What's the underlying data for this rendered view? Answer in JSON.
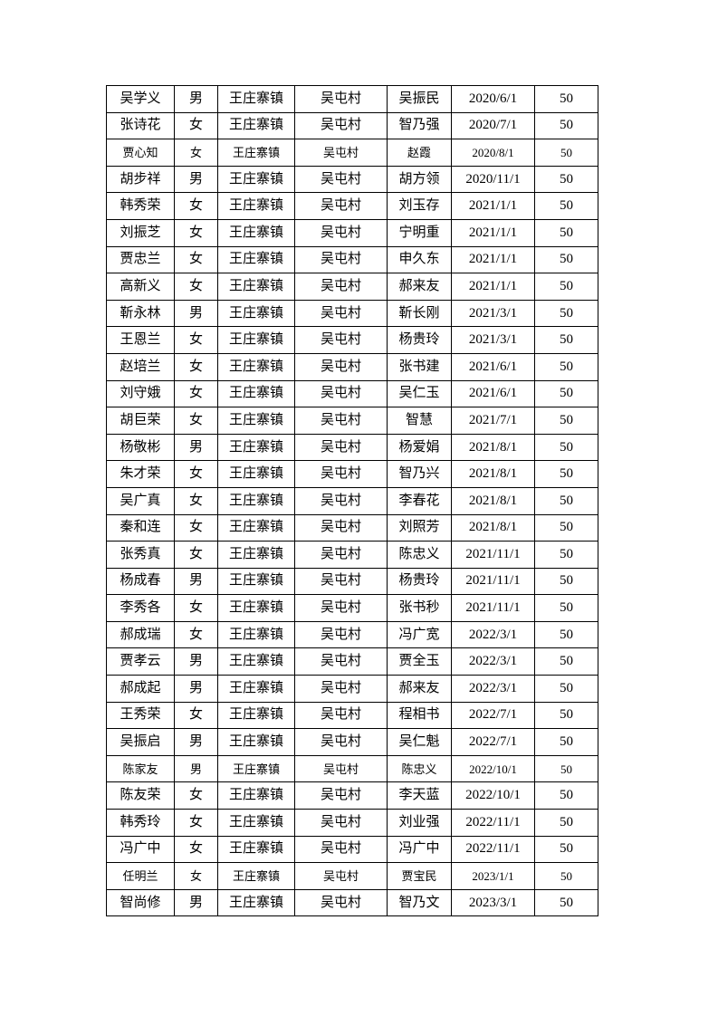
{
  "page": {
    "background_color": "#ffffff",
    "text_color": "#000000",
    "border_color": "#000000"
  },
  "table": {
    "rows": [
      [
        "吴学义",
        "男",
        "王庄寨镇",
        "吴屯村",
        "吴振民",
        "2020/6/1",
        "50"
      ],
      [
        "张诗花",
        "女",
        "王庄寨镇",
        "吴屯村",
        "智乃强",
        "2020/7/1",
        "50"
      ],
      [
        "贾心知",
        "女",
        "王庄寨镇",
        "吴屯村",
        "赵霞",
        "2020/8/1",
        "50"
      ],
      [
        "胡步祥",
        "男",
        "王庄寨镇",
        "吴屯村",
        "胡方领",
        "2020/11/1",
        "50"
      ],
      [
        "韩秀荣",
        "女",
        "王庄寨镇",
        "吴屯村",
        "刘玉存",
        "2021/1/1",
        "50"
      ],
      [
        "刘振芝",
        "女",
        "王庄寨镇",
        "吴屯村",
        "宁明重",
        "2021/1/1",
        "50"
      ],
      [
        "贾忠兰",
        "女",
        "王庄寨镇",
        "吴屯村",
        "申久东",
        "2021/1/1",
        "50"
      ],
      [
        "高新义",
        "女",
        "王庄寨镇",
        "吴屯村",
        "郝来友",
        "2021/1/1",
        "50"
      ],
      [
        "靳永林",
        "男",
        "王庄寨镇",
        "吴屯村",
        "靳长刚",
        "2021/3/1",
        "50"
      ],
      [
        "王恩兰",
        "女",
        "王庄寨镇",
        "吴屯村",
        "杨贵玲",
        "2021/3/1",
        "50"
      ],
      [
        "赵培兰",
        "女",
        "王庄寨镇",
        "吴屯村",
        "张书建",
        "2021/6/1",
        "50"
      ],
      [
        "刘守娥",
        "女",
        "王庄寨镇",
        "吴屯村",
        "吴仁玉",
        "2021/6/1",
        "50"
      ],
      [
        "胡巨荣",
        "女",
        "王庄寨镇",
        "吴屯村",
        "智慧",
        "2021/7/1",
        "50"
      ],
      [
        "杨敬彬",
        "男",
        "王庄寨镇",
        "吴屯村",
        "杨爱娟",
        "2021/8/1",
        "50"
      ],
      [
        "朱才荣",
        "女",
        "王庄寨镇",
        "吴屯村",
        "智乃兴",
        "2021/8/1",
        "50"
      ],
      [
        "吴广真",
        "女",
        "王庄寨镇",
        "吴屯村",
        "李春花",
        "2021/8/1",
        "50"
      ],
      [
        "秦和连",
        "女",
        "王庄寨镇",
        "吴屯村",
        "刘照芳",
        "2021/8/1",
        "50"
      ],
      [
        "张秀真",
        "女",
        "王庄寨镇",
        "吴屯村",
        "陈忠义",
        "2021/11/1",
        "50"
      ],
      [
        "杨成春",
        "男",
        "王庄寨镇",
        "吴屯村",
        "杨贵玲",
        "2021/11/1",
        "50"
      ],
      [
        "李秀各",
        "女",
        "王庄寨镇",
        "吴屯村",
        "张书秒",
        "2021/11/1",
        "50"
      ],
      [
        "郝成瑞",
        "女",
        "王庄寨镇",
        "吴屯村",
        "冯广宽",
        "2022/3/1",
        "50"
      ],
      [
        "贾孝云",
        "男",
        "王庄寨镇",
        "吴屯村",
        "贾全玉",
        "2022/3/1",
        "50"
      ],
      [
        "郝成起",
        "男",
        "王庄寨镇",
        "吴屯村",
        "郝来友",
        "2022/3/1",
        "50"
      ],
      [
        "王秀荣",
        "女",
        "王庄寨镇",
        "吴屯村",
        "程相书",
        "2022/7/1",
        "50"
      ],
      [
        "吴振启",
        "男",
        "王庄寨镇",
        "吴屯村",
        "吴仁魁",
        "2022/7/1",
        "50"
      ],
      [
        "陈家友",
        "男",
        "王庄寨镇",
        "吴屯村",
        "陈忠义",
        "2022/10/1",
        "50"
      ],
      [
        "陈友荣",
        "女",
        "王庄寨镇",
        "吴屯村",
        "李天蓝",
        "2022/10/1",
        "50"
      ],
      [
        "韩秀玲",
        "女",
        "王庄寨镇",
        "吴屯村",
        "刘业强",
        "2022/11/1",
        "50"
      ],
      [
        "冯广中",
        "女",
        "王庄寨镇",
        "吴屯村",
        "冯广中",
        "2022/11/1",
        "50"
      ],
      [
        "任明兰",
        "女",
        "王庄寨镇",
        "吴屯村",
        "贾宝民",
        "2023/1/1",
        "50"
      ],
      [
        "智尚修",
        "男",
        "王庄寨镇",
        "吴屯村",
        "智乃文",
        "2023/3/1",
        "50"
      ]
    ],
    "small_font_rows": [
      2,
      25,
      29
    ],
    "missing_bottom_border_cell": [
      30,
      5
    ]
  }
}
